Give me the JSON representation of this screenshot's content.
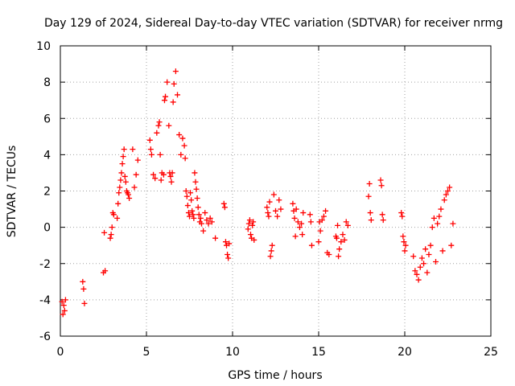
{
  "chart_data": {
    "type": "scatter",
    "title": "Day 129 of 2024, Sidereal Day-to-day VTEC variation (SDTVAR) for receiver nrmg",
    "xlabel": "GPS time / hours",
    "ylabel": "SDTVAR / TECUs",
    "xlim": [
      0,
      25
    ],
    "ylim": [
      -6,
      10
    ],
    "xticks": [
      0,
      5,
      10,
      15,
      20,
      25
    ],
    "yticks": [
      -6,
      -4,
      -2,
      0,
      2,
      4,
      6,
      8,
      10
    ],
    "grid": true,
    "marker": "plus",
    "color": "#ff0000",
    "series": [
      {
        "name": "SDTVAR",
        "x": [
          0.1,
          0.15,
          0.2,
          0.25,
          0.3,
          1.3,
          1.35,
          1.4,
          2.5,
          2.55,
          2.6,
          2.9,
          2.95,
          3.0,
          3.05,
          3.1,
          3.3,
          3.35,
          3.4,
          3.45,
          3.5,
          3.55,
          3.6,
          3.65,
          3.7,
          3.75,
          3.8,
          3.85,
          3.9,
          3.95,
          4.0,
          4.2,
          4.3,
          4.4,
          4.5,
          5.2,
          5.25,
          5.3,
          5.4,
          5.5,
          5.6,
          5.7,
          5.75,
          5.8,
          5.85,
          5.9,
          6.0,
          6.05,
          6.1,
          6.2,
          6.3,
          6.35,
          6.4,
          6.45,
          6.5,
          6.55,
          6.6,
          6.7,
          6.8,
          6.9,
          7.0,
          7.1,
          7.2,
          7.25,
          7.3,
          7.35,
          7.4,
          7.45,
          7.5,
          7.55,
          7.6,
          7.65,
          7.7,
          7.75,
          7.8,
          7.85,
          7.9,
          7.95,
          8.0,
          8.05,
          8.1,
          8.15,
          8.2,
          8.3,
          8.4,
          8.5,
          8.6,
          8.7,
          8.8,
          9.0,
          9.5,
          9.55,
          9.6,
          9.65,
          9.7,
          9.75,
          9.8,
          10.9,
          10.95,
          11.0,
          11.05,
          11.1,
          11.15,
          11.2,
          11.25,
          12.0,
          12.05,
          12.1,
          12.15,
          12.2,
          12.25,
          12.3,
          12.4,
          12.5,
          12.6,
          12.7,
          12.8,
          13.5,
          13.55,
          13.6,
          13.65,
          13.7,
          13.8,
          13.9,
          14.0,
          14.05,
          14.1,
          14.5,
          14.55,
          14.6,
          15.0,
          15.05,
          15.1,
          15.2,
          15.3,
          15.4,
          15.5,
          15.6,
          16.0,
          16.05,
          16.1,
          16.15,
          16.2,
          16.3,
          16.4,
          16.5,
          16.6,
          16.7,
          17.9,
          17.95,
          18.0,
          18.05,
          18.6,
          18.65,
          18.7,
          18.75,
          19.8,
          19.85,
          19.9,
          19.95,
          20.0,
          20.05,
          20.5,
          20.6,
          20.7,
          20.8,
          20.9,
          21.0,
          21.1,
          21.2,
          21.3,
          21.4,
          21.5,
          21.6,
          21.7,
          21.8,
          21.9,
          22.0,
          22.1,
          22.2,
          22.3,
          22.4,
          22.5,
          22.6,
          22.7,
          22.8
        ],
        "y": [
          -4.1,
          -4.8,
          -4.3,
          -4.6,
          -4.0,
          -3.0,
          -3.4,
          -4.2,
          -2.5,
          -0.3,
          -2.4,
          -0.6,
          -0.4,
          0.0,
          0.8,
          0.7,
          0.5,
          1.3,
          1.9,
          2.2,
          2.6,
          3.0,
          3.5,
          3.9,
          4.3,
          2.8,
          2.5,
          2.0,
          1.9,
          1.8,
          1.6,
          4.3,
          2.2,
          2.9,
          3.7,
          4.8,
          4.3,
          4.0,
          2.9,
          2.7,
          5.2,
          5.6,
          5.8,
          4.0,
          2.6,
          3.0,
          2.9,
          7.0,
          7.2,
          8.0,
          5.6,
          3.0,
          2.8,
          2.5,
          3.0,
          6.9,
          7.9,
          8.6,
          7.3,
          5.1,
          4.0,
          4.9,
          4.5,
          3.8,
          2.0,
          1.7,
          1.2,
          0.8,
          0.6,
          1.9,
          1.5,
          0.9,
          0.7,
          0.5,
          3.0,
          2.5,
          2.1,
          1.6,
          1.1,
          0.7,
          0.3,
          0.5,
          0.2,
          -0.2,
          0.8,
          0.4,
          0.2,
          0.5,
          0.3,
          -0.6,
          1.3,
          1.1,
          -0.8,
          -1.0,
          -1.5,
          -1.7,
          -0.9,
          -0.1,
          0.2,
          0.4,
          -0.4,
          -0.6,
          0.1,
          0.3,
          -0.7,
          1.1,
          0.8,
          0.6,
          1.4,
          -1.6,
          -1.3,
          -1.0,
          1.8,
          0.9,
          0.6,
          1.5,
          1.0,
          1.3,
          0.9,
          0.5,
          -0.5,
          1.0,
          0.3,
          0.0,
          0.2,
          -0.4,
          0.8,
          0.7,
          0.3,
          -1.0,
          -0.8,
          0.3,
          -0.2,
          0.4,
          0.6,
          0.9,
          -1.4,
          -1.5,
          -0.5,
          -0.6,
          0.1,
          -1.6,
          -1.2,
          -0.8,
          -0.4,
          -0.7,
          0.3,
          0.1,
          1.7,
          2.4,
          0.8,
          0.4,
          2.6,
          2.3,
          0.7,
          0.4,
          0.8,
          0.6,
          -0.5,
          -0.8,
          -1.3,
          -1.0,
          -1.6,
          -2.4,
          -2.6,
          -2.9,
          -2.2,
          -1.7,
          -2.0,
          -1.2,
          -2.5,
          -1.5,
          -1.0,
          0.0,
          0.5,
          -1.9,
          0.2,
          0.6,
          1.0,
          -1.3,
          1.5,
          1.8,
          2.0,
          2.2,
          -1.0,
          0.2
        ]
      }
    ]
  }
}
